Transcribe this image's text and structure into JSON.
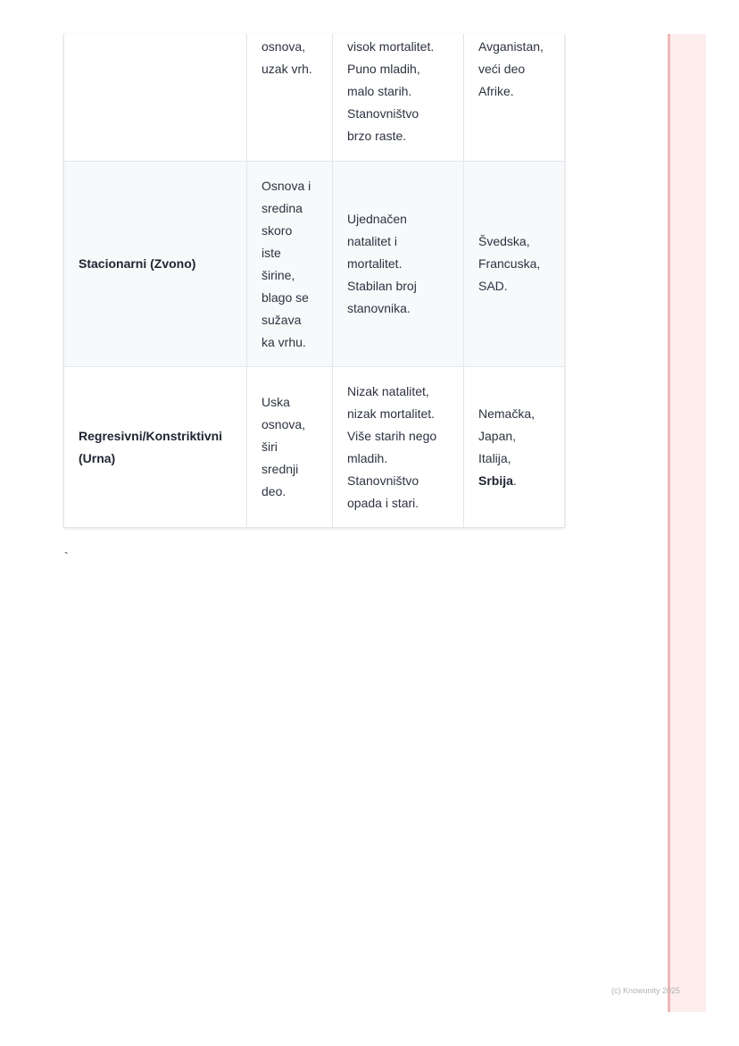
{
  "table": {
    "rows": [
      {
        "type": "",
        "shape": [
          "osnova,",
          "uzak vrh."
        ],
        "characteristics": [
          "visok mortalitet.",
          "Puno mladih,",
          "malo starih.",
          "Stanovništvo",
          "brzo raste."
        ],
        "examples": [
          "Avganistan,",
          "veći deo",
          "Afrike."
        ]
      },
      {
        "type": "Stacionarni (Zvono)",
        "shape": [
          "Osnova i",
          "sredina",
          "skoro",
          "iste",
          "širine,",
          "blago se",
          "sužava",
          "ka vrhu."
        ],
        "characteristics": [
          "Ujednačen",
          "natalitet i",
          "mortalitet.",
          "Stabilan broj",
          "stanovnika."
        ],
        "examples": [
          "Švedska,",
          "Francuska,",
          "SAD."
        ]
      },
      {
        "type": [
          "Regresivni/Konstriktivni",
          "(Urna)"
        ],
        "shape": [
          "Uska",
          "osnova,",
          "širi",
          "srednji",
          "deo."
        ],
        "characteristics": [
          "Nizak natalitet,",
          "nizak mortalitet.",
          "Više starih nego",
          "mladih.",
          "Stanovništvo",
          "opada i stari."
        ],
        "examples": [
          "Nemačka,",
          "Japan,",
          "Italija,"
        ],
        "examples_bold": "Srbija",
        "examples_tail": "."
      }
    ]
  },
  "stray_char": "`",
  "footer": "(c) Knowunity 2025",
  "colors": {
    "strip": "#fdeded",
    "strip_border": "#f0b8b8",
    "alt_row": "#f7f9fa"
  }
}
